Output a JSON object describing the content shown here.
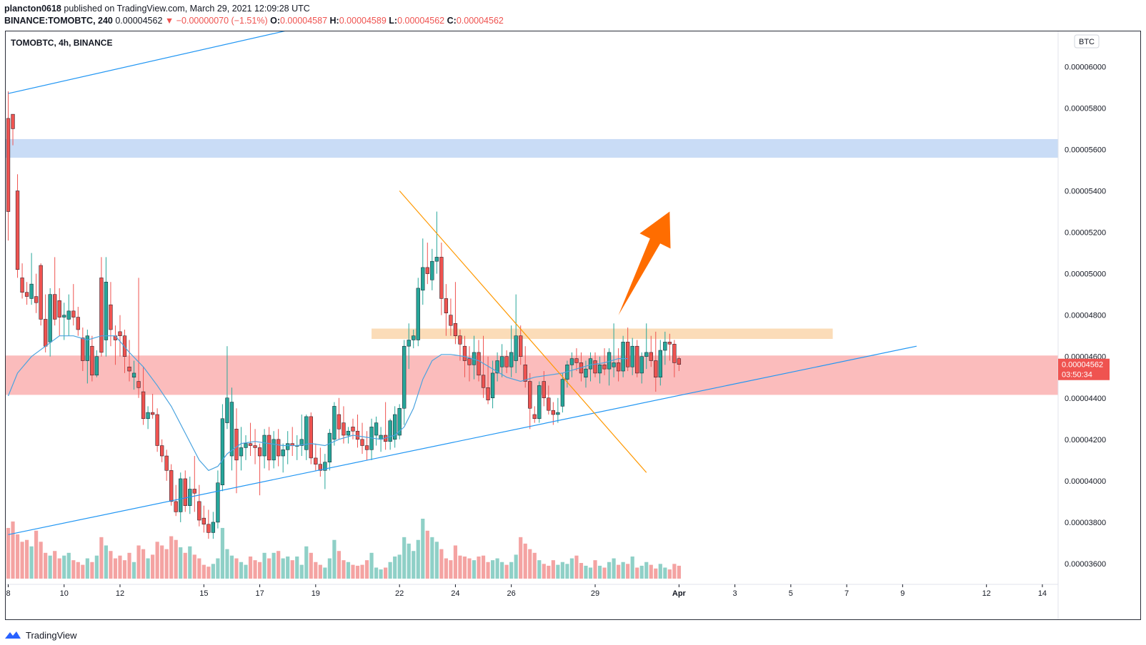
{
  "header": {
    "author": "plancton0618",
    "published_text": "published on TradingView.com, March 29, 2021 12:09:28 UTC",
    "symbol_line": "BINANCE:TOMOBTC, 240",
    "last_price": "0.00004562",
    "change": "▼ −0.00000070 (−1.51%)",
    "o_label": "O:",
    "o_value": "0.00004587",
    "h_label": "H:",
    "h_value": "0.00004589",
    "l_label": "L:",
    "l_value": "0.00004562",
    "c_label": "C:",
    "c_value": "0.00004562"
  },
  "footer": {
    "brand": "TradingView"
  },
  "colors": {
    "up": "#26a69a",
    "down": "#ef5350",
    "vol_up": "#8fd0c7",
    "vol_down": "#f4a3a2",
    "ma": "#4aa3df",
    "trendline": "#2196f3",
    "downtrend": "#ff9800",
    "arrow": "#ff6d00",
    "supply_zone": "#c9dcf6",
    "resistance_zone": "#fbdcb8",
    "support_zone": "#fbbcbc"
  },
  "chart_data": {
    "type": "candlestick",
    "title": "TOMOBTC, 4h, BINANCE",
    "currency": "BTC",
    "ylim": [
      3.5e-05,
      6.17e-05
    ],
    "y_ticks": [
      "0.00006000",
      "0.00005800",
      "0.00005600",
      "0.00005400",
      "0.00005200",
      "0.00005000",
      "0.00004800",
      "0.00004600",
      "0.00004400",
      "0.00004200",
      "0.00004000",
      "0.00003800",
      "0.00003600"
    ],
    "x_ticks": [
      {
        "label": "8",
        "bar": 0
      },
      {
        "label": "10",
        "bar": 12
      },
      {
        "label": "12",
        "bar": 24
      },
      {
        "label": "15",
        "bar": 42
      },
      {
        "label": "17",
        "bar": 54
      },
      {
        "label": "19",
        "bar": 66
      },
      {
        "label": "22",
        "bar": 84
      },
      {
        "label": "24",
        "bar": 96
      },
      {
        "label": "26",
        "bar": 108
      },
      {
        "label": "29",
        "bar": 126
      },
      {
        "label": "Apr",
        "bar": 144
      },
      {
        "label": "3",
        "bar": 156
      },
      {
        "label": "5",
        "bar": 168
      },
      {
        "label": "7",
        "bar": 180
      },
      {
        "label": "9",
        "bar": 192
      },
      {
        "label": "12",
        "bar": 210
      },
      {
        "label": "14",
        "bar": 222
      }
    ],
    "total_bar_slots": 224,
    "current_price_label": "0.00004562",
    "countdown_label": "03:50:34",
    "candles": [
      [
        5.75e-05,
        5.88e-05,
        5.16e-05,
        5.3e-05
      ],
      [
        5.77e-05,
        5.77e-05,
        5.62e-05,
        5.7e-05
      ],
      [
        5.4e-05,
        5.48e-05,
        4.98e-05,
        5.02e-05
      ],
      [
        4.98e-05,
        5.05e-05,
        4.88e-05,
        4.91e-05
      ],
      [
        4.91e-05,
        4.96e-05,
        4.85e-05,
        4.89e-05
      ],
      [
        4.88e-05,
        5.1e-05,
        4.85e-05,
        4.95e-05
      ],
      [
        4.89e-05,
        5e-05,
        4.81e-05,
        4.86e-05
      ],
      [
        5.04e-05,
        5.05e-05,
        4.75e-05,
        4.78e-05
      ],
      [
        4.78e-05,
        4.9e-05,
        4.62e-05,
        4.65e-05
      ],
      [
        4.67e-05,
        4.93e-05,
        4.6e-05,
        4.9e-05
      ],
      [
        4.9e-05,
        5.08e-05,
        4.75e-05,
        4.78e-05
      ],
      [
        4.87e-05,
        4.93e-05,
        4.7e-05,
        4.79e-05
      ],
      [
        4.79e-05,
        4.86e-05,
        4.68e-05,
        4.8e-05
      ],
      [
        4.78e-05,
        4.9e-05,
        4.7e-05,
        4.82e-05
      ],
      [
        4.82e-05,
        4.95e-05,
        4.75e-05,
        4.79e-05
      ],
      [
        4.79e-05,
        4.84e-05,
        4.7e-05,
        4.73e-05
      ],
      [
        4.69e-05,
        4.74e-05,
        4.53e-05,
        4.58e-05
      ],
      [
        4.58e-05,
        4.73e-05,
        4.47e-05,
        4.7e-05
      ],
      [
        4.65e-05,
        4.7e-05,
        4.48e-05,
        4.51e-05
      ],
      [
        4.51e-05,
        4.63e-05,
        4.5e-05,
        4.6e-05
      ],
      [
        4.98e-05,
        5.08e-05,
        4.6e-05,
        4.62e-05
      ],
      [
        4.68e-05,
        5.08e-05,
        4.6e-05,
        4.96e-05
      ],
      [
        4.85e-05,
        4.96e-05,
        4.65e-05,
        4.73e-05
      ],
      [
        4.7e-05,
        4.75e-05,
        4.56e-05,
        4.68e-05
      ],
      [
        4.72e-05,
        4.8e-05,
        4.6e-05,
        4.7e-05
      ],
      [
        4.7e-05,
        4.73e-05,
        4.52e-05,
        4.6e-05
      ],
      [
        4.55e-05,
        4.68e-05,
        4.48e-05,
        4.53e-05
      ],
      [
        4.5e-05,
        4.58e-05,
        4.44e-05,
        4.52e-05
      ],
      [
        4.48e-05,
        4.98e-05,
        4.4e-05,
        4.45e-05
      ],
      [
        4.43e-05,
        4.55e-05,
        4.27e-05,
        4.3e-05
      ],
      [
        4.3e-05,
        4.36e-05,
        4.25e-05,
        4.33e-05
      ],
      [
        4.33e-05,
        4.42e-05,
        4.3e-05,
        4.32e-05
      ],
      [
        4.32e-05,
        4.35e-05,
        4.14e-05,
        4.17e-05
      ],
      [
        4.17e-05,
        4.2e-05,
        4.09e-05,
        4.12e-05
      ],
      [
        4.12e-05,
        4.15e-05,
        4e-05,
        4.05e-05
      ],
      [
        4.05e-05,
        4.08e-05,
        3.88e-05,
        3.9e-05
      ],
      [
        3.9e-05,
        3.98e-05,
        3.83e-05,
        3.85e-05
      ],
      [
        3.85e-05,
        4.04e-05,
        3.8e-05,
        4.01e-05
      ],
      [
        4.01e-05,
        4.05e-05,
        3.85e-05,
        3.88e-05
      ],
      [
        3.88e-05,
        4.02e-05,
        3.84e-05,
        3.96e-05
      ],
      [
        3.96e-05,
        4.12e-05,
        3.85e-05,
        3.94e-05
      ],
      [
        3.9e-05,
        3.98e-05,
        3.78e-05,
        3.81e-05
      ],
      [
        3.82e-05,
        3.88e-05,
        3.75e-05,
        3.79e-05
      ],
      [
        3.79e-05,
        3.86e-05,
        3.72e-05,
        3.75e-05
      ],
      [
        3.75e-05,
        3.85e-05,
        3.72e-05,
        3.8e-05
      ],
      [
        3.8e-05,
        4.05e-05,
        3.77e-05,
        3.99e-05
      ],
      [
        3.98e-05,
        4.37e-05,
        3.95e-05,
        4.3e-05
      ],
      [
        4.28e-05,
        4.65e-05,
        4.25e-05,
        4.4e-05
      ],
      [
        4.12e-05,
        4.45e-05,
        4.05e-05,
        4.38e-05
      ],
      [
        4.25e-05,
        4.35e-05,
        3.94e-05,
        4.1e-05
      ],
      [
        4.12e-05,
        4.26e-05,
        4.05e-05,
        4.16e-05
      ],
      [
        4.16e-05,
        4.22e-05,
        4.1e-05,
        4.18e-05
      ],
      [
        4.18e-05,
        4.28e-05,
        4.12e-05,
        4.17e-05
      ],
      [
        4.17e-05,
        4.25e-05,
        4.08e-05,
        4.16e-05
      ],
      [
        4.16e-05,
        4.18e-05,
        3.93e-05,
        4.12e-05
      ],
      [
        4.12e-05,
        4.25e-05,
        4.06e-05,
        4.22e-05
      ],
      [
        4.22e-05,
        4.26e-05,
        4.05e-05,
        4.1e-05
      ],
      [
        4.1e-05,
        4.24e-05,
        4.06e-05,
        4.2e-05
      ],
      [
        4.2e-05,
        4.25e-05,
        4.07e-05,
        4.12e-05
      ],
      [
        4.12e-05,
        4.18e-05,
        4.04e-05,
        4.15e-05
      ],
      [
        4.15e-05,
        4.24e-05,
        4.08e-05,
        4.18e-05
      ],
      [
        4.18e-05,
        4.26e-05,
        4.12e-05,
        4.17e-05
      ],
      [
        4.17e-05,
        4.22e-05,
        4.1e-05,
        4.17e-05
      ],
      [
        4.17e-05,
        4.32e-05,
        4.12e-05,
        4.2e-05
      ],
      [
        4.15e-05,
        4.32e-05,
        4.1e-05,
        4.31e-05
      ],
      [
        4.31e-05,
        4.33e-05,
        4.08e-05,
        4.11e-05
      ],
      [
        4.11e-05,
        4.18e-05,
        4.05e-05,
        4.08e-05
      ],
      [
        4.08e-05,
        4.16e-05,
        4.02e-05,
        4.05e-05
      ],
      [
        4.05e-05,
        4.13e-05,
        3.96e-05,
        4.09e-05
      ],
      [
        4.09e-05,
        4.25e-05,
        4.05e-05,
        4.23e-05
      ],
      [
        4.2e-05,
        4.38e-05,
        4.17e-05,
        4.36e-05
      ],
      [
        4.32e-05,
        4.4e-05,
        4.2e-05,
        4.25e-05
      ],
      [
        4.28e-05,
        4.36e-05,
        4.18e-05,
        4.22e-05
      ],
      [
        4.22e-05,
        4.26e-05,
        4.18e-05,
        4.24e-05
      ],
      [
        4.26e-05,
        4.3e-05,
        4.2e-05,
        4.24e-05
      ],
      [
        4.24e-05,
        4.32e-05,
        4.16e-05,
        4.2e-05
      ],
      [
        4.2e-05,
        4.28e-05,
        4.13e-05,
        4.17e-05
      ],
      [
        4.17e-05,
        4.24e-05,
        4.1e-05,
        4.15e-05
      ],
      [
        4.15e-05,
        4.3e-05,
        4.1e-05,
        4.26e-05
      ],
      [
        4.22e-05,
        4.31e-05,
        4.17e-05,
        4.28e-05
      ],
      [
        4.2e-05,
        4.26e-05,
        4.14e-05,
        4.22e-05
      ],
      [
        4.22e-05,
        4.38e-05,
        4.15e-05,
        4.19e-05
      ],
      [
        4.19e-05,
        4.3e-05,
        4.15e-05,
        4.29e-05
      ],
      [
        4.2e-05,
        4.36e-05,
        4.16e-05,
        4.32e-05
      ],
      [
        4.22e-05,
        4.37e-05,
        4.2e-05,
        4.35e-05
      ],
      [
        4.35e-05,
        4.68e-05,
        4.27e-05,
        4.65e-05
      ],
      [
        4.65e-05,
        4.76e-05,
        4.54e-05,
        4.68e-05
      ],
      [
        4.68e-05,
        4.73e-05,
        4.64e-05,
        4.7e-05
      ],
      [
        4.68e-05,
        4.98e-05,
        4.65e-05,
        4.93e-05
      ],
      [
        4.92e-05,
        5.17e-05,
        4.85e-05,
        5.03e-05
      ],
      [
        5.03e-05,
        5.15e-05,
        4.95e-05,
        5e-05
      ],
      [
        4.97e-05,
        5.12e-05,
        4.92e-05,
        5.06e-05
      ],
      [
        5.06e-05,
        5.3e-05,
        5e-05,
        5.08e-05
      ],
      [
        5.08e-05,
        5.15e-05,
        4.8e-05,
        4.88e-05
      ],
      [
        4.88e-05,
        4.95e-05,
        4.7e-05,
        4.81e-05
      ],
      [
        4.8e-05,
        4.88e-05,
        4.7e-05,
        4.75e-05
      ],
      [
        4.76e-05,
        4.96e-05,
        4.66e-05,
        4.7e-05
      ],
      [
        4.7e-05,
        4.73e-05,
        4.58e-05,
        4.66e-05
      ],
      [
        4.65e-05,
        4.7e-05,
        4.5e-05,
        4.58e-05
      ],
      [
        4.59e-05,
        4.65e-05,
        4.48e-05,
        4.56e-05
      ],
      [
        4.56e-05,
        4.7e-05,
        4.49e-05,
        4.62e-05
      ],
      [
        4.62e-05,
        4.68e-05,
        4.48e-05,
        4.51e-05
      ],
      [
        4.51e-05,
        4.7e-05,
        4.4e-05,
        4.45e-05
      ],
      [
        4.45e-05,
        4.6e-05,
        4.37e-05,
        4.39e-05
      ],
      [
        4.4e-05,
        4.58e-05,
        4.35e-05,
        4.52e-05
      ],
      [
        4.52e-05,
        4.62e-05,
        4.48e-05,
        4.58e-05
      ],
      [
        4.55e-05,
        4.66e-05,
        4.5e-05,
        4.6e-05
      ],
      [
        4.6e-05,
        4.63e-05,
        4.52e-05,
        4.55e-05
      ],
      [
        4.55e-05,
        4.75e-05,
        4.5e-05,
        4.62e-05
      ],
      [
        4.58e-05,
        4.9e-05,
        4.52e-05,
        4.7e-05
      ],
      [
        4.7e-05,
        4.75e-05,
        4.56e-05,
        4.6e-05
      ],
      [
        4.56e-05,
        4.65e-05,
        4.45e-05,
        4.48e-05
      ],
      [
        4.48e-05,
        4.52e-05,
        4.25e-05,
        4.35e-05
      ],
      [
        4.32e-05,
        4.36e-05,
        4.28e-05,
        4.3e-05
      ],
      [
        4.3e-05,
        4.48e-05,
        4.28e-05,
        4.46e-05
      ],
      [
        4.48e-05,
        4.53e-05,
        4.36e-05,
        4.4e-05
      ],
      [
        4.4e-05,
        4.46e-05,
        4.32e-05,
        4.34e-05
      ],
      [
        4.34e-05,
        4.38e-05,
        4.27e-05,
        4.32e-05
      ],
      [
        4.32e-05,
        4.4e-05,
        4.28e-05,
        4.33e-05
      ],
      [
        4.36e-05,
        4.52e-05,
        4.33e-05,
        4.49e-05
      ],
      [
        4.49e-05,
        4.58e-05,
        4.45e-05,
        4.56e-05
      ],
      [
        4.56e-05,
        4.62e-05,
        4.5e-05,
        4.59e-05
      ],
      [
        4.59e-05,
        4.64e-05,
        4.53e-05,
        4.57e-05
      ],
      [
        4.57e-05,
        4.62e-05,
        4.48e-05,
        4.52e-05
      ],
      [
        4.5e-05,
        4.58e-05,
        4.45e-05,
        4.54e-05
      ],
      [
        4.54e-05,
        4.62e-05,
        4.48e-05,
        4.59e-05
      ],
      [
        4.58e-05,
        4.62e-05,
        4.5e-05,
        4.52e-05
      ],
      [
        4.52e-05,
        4.6e-05,
        4.47e-05,
        4.56e-05
      ],
      [
        4.56e-05,
        4.64e-05,
        4.51e-05,
        4.54e-05
      ],
      [
        4.54e-05,
        4.64e-05,
        4.46e-05,
        4.62e-05
      ],
      [
        4.55e-05,
        4.76e-05,
        4.5e-05,
        4.57e-05
      ],
      [
        4.57e-05,
        4.64e-05,
        4.48e-05,
        4.53e-05
      ],
      [
        4.53e-05,
        4.7e-05,
        4.5e-05,
        4.67e-05
      ],
      [
        4.67e-05,
        4.74e-05,
        4.53e-05,
        4.55e-05
      ],
      [
        4.55e-05,
        4.69e-05,
        4.51e-05,
        4.65e-05
      ],
      [
        4.65e-05,
        4.68e-05,
        4.5e-05,
        4.52e-05
      ],
      [
        4.52e-05,
        4.62e-05,
        4.47e-05,
        4.6e-05
      ],
      [
        4.6e-05,
        4.76e-05,
        4.54e-05,
        4.62e-05
      ],
      [
        4.62e-05,
        4.7e-05,
        4.55e-05,
        4.58e-05
      ],
      [
        4.58e-05,
        4.72e-05,
        4.43e-05,
        4.5e-05
      ],
      [
        4.5e-05,
        4.68e-05,
        4.46e-05,
        4.63e-05
      ],
      [
        4.63e-05,
        4.72e-05,
        4.56e-05,
        4.67e-05
      ],
      [
        4.67e-05,
        4.71e-05,
        4.58e-05,
        4.66e-05
      ],
      [
        4.66e-05,
        4.68e-05,
        4.5e-05,
        4.57e-05
      ],
      [
        4.59e-05,
        4.6e-05,
        4.53e-05,
        4.562e-05
      ]
    ],
    "volume": [
      0.55,
      0.62,
      0.48,
      0.4,
      0.42,
      0.35,
      0.52,
      0.4,
      0.28,
      0.25,
      0.3,
      0.22,
      0.25,
      0.28,
      0.2,
      0.18,
      0.15,
      0.22,
      0.18,
      0.25,
      0.45,
      0.36,
      0.3,
      0.22,
      0.25,
      0.2,
      0.28,
      0.18,
      0.36,
      0.32,
      0.22,
      0.26,
      0.4,
      0.36,
      0.32,
      0.46,
      0.42,
      0.34,
      0.28,
      0.35,
      0.26,
      0.22,
      0.15,
      0.13,
      0.16,
      0.22,
      0.55,
      0.32,
      0.25,
      0.22,
      0.18,
      0.15,
      0.24,
      0.2,
      0.18,
      0.28,
      0.22,
      0.28,
      0.3,
      0.22,
      0.24,
      0.2,
      0.24,
      0.15,
      0.35,
      0.28,
      0.18,
      0.15,
      0.12,
      0.22,
      0.42,
      0.3,
      0.2,
      0.18,
      0.15,
      0.14,
      0.15,
      0.2,
      0.28,
      0.12,
      0.1,
      0.12,
      0.18,
      0.24,
      0.26,
      0.45,
      0.38,
      0.3,
      0.42,
      0.65,
      0.52,
      0.45,
      0.4,
      0.32,
      0.22,
      0.2,
      0.36,
      0.25,
      0.24,
      0.22,
      0.2,
      0.24,
      0.25,
      0.18,
      0.2,
      0.22,
      0.18,
      0.15,
      0.18,
      0.26,
      0.45,
      0.38,
      0.32,
      0.28,
      0.2,
      0.16,
      0.14,
      0.2,
      0.15,
      0.18,
      0.16,
      0.22,
      0.25,
      0.17,
      0.14,
      0.12,
      0.2,
      0.14,
      0.12,
      0.18,
      0.22,
      0.15,
      0.18,
      0.16,
      0.24,
      0.12,
      0.14,
      0.18,
      0.15,
      0.11,
      0.16,
      0.12,
      0.1,
      0.16,
      0.14,
      0.02
    ],
    "ma_line": [
      [
        0,
        4.41e-05
      ],
      [
        2,
        4.52e-05
      ],
      [
        5,
        4.6e-05
      ],
      [
        8,
        4.65e-05
      ],
      [
        11,
        4.7e-05
      ],
      [
        14,
        4.7e-05
      ],
      [
        17,
        4.68e-05
      ],
      [
        20,
        4.7e-05
      ],
      [
        23,
        4.7e-05
      ],
      [
        26,
        4.62e-05
      ],
      [
        29,
        4.55e-05
      ],
      [
        32,
        4.46e-05
      ],
      [
        35,
        4.36e-05
      ],
      [
        38,
        4.23e-05
      ],
      [
        41,
        4.1e-05
      ],
      [
        43,
        4.05e-05
      ],
      [
        45,
        4.07e-05
      ],
      [
        47,
        4.13e-05
      ],
      [
        50,
        4.18e-05
      ],
      [
        53,
        4.19e-05
      ],
      [
        56,
        4.18e-05
      ],
      [
        59,
        4.17e-05
      ],
      [
        62,
        4.17e-05
      ],
      [
        65,
        4.18e-05
      ],
      [
        68,
        4.17e-05
      ],
      [
        71,
        4.2e-05
      ],
      [
        74,
        4.22e-05
      ],
      [
        77,
        4.21e-05
      ],
      [
        80,
        4.2e-05
      ],
      [
        83,
        4.22e-05
      ],
      [
        85,
        4.26e-05
      ],
      [
        87,
        4.35e-05
      ],
      [
        89,
        4.49e-05
      ],
      [
        91,
        4.58e-05
      ],
      [
        93,
        4.61e-05
      ],
      [
        95,
        4.61e-05
      ],
      [
        98,
        4.6e-05
      ],
      [
        101,
        4.58e-05
      ],
      [
        104,
        4.54e-05
      ],
      [
        107,
        4.5e-05
      ],
      [
        110,
        4.48e-05
      ],
      [
        113,
        4.5e-05
      ],
      [
        116,
        4.51e-05
      ],
      [
        119,
        4.52e-05
      ],
      [
        122,
        4.54e-05
      ],
      [
        125,
        4.56e-05
      ],
      [
        128,
        4.57e-05
      ],
      [
        131,
        4.59e-05
      ],
      [
        133,
        4.59e-05
      ]
    ],
    "drawings": {
      "supply_zone": [
        5.65e-05,
        5.56e-05
      ],
      "resistance_zone": {
        "top": 4.735e-05,
        "bottom": 4.685e-05,
        "from_bar": 78,
        "to_bar": 177
      },
      "support_zone": [
        4.605e-05,
        4.415e-05
      ],
      "upper_trendline": [
        [
          0,
          5.87e-05
        ],
        [
          61,
          6.18e-05
        ]
      ],
      "lower_trendline": [
        [
          0,
          3.74e-05
        ],
        [
          195,
          4.65e-05
        ]
      ],
      "downtrend_line": [
        [
          84,
          5.4e-05
        ],
        [
          137,
          4.04e-05
        ]
      ],
      "arrow": {
        "from": [
          131,
          4.8e-05
        ],
        "to": [
          142,
          5.3e-05
        ]
      }
    }
  }
}
